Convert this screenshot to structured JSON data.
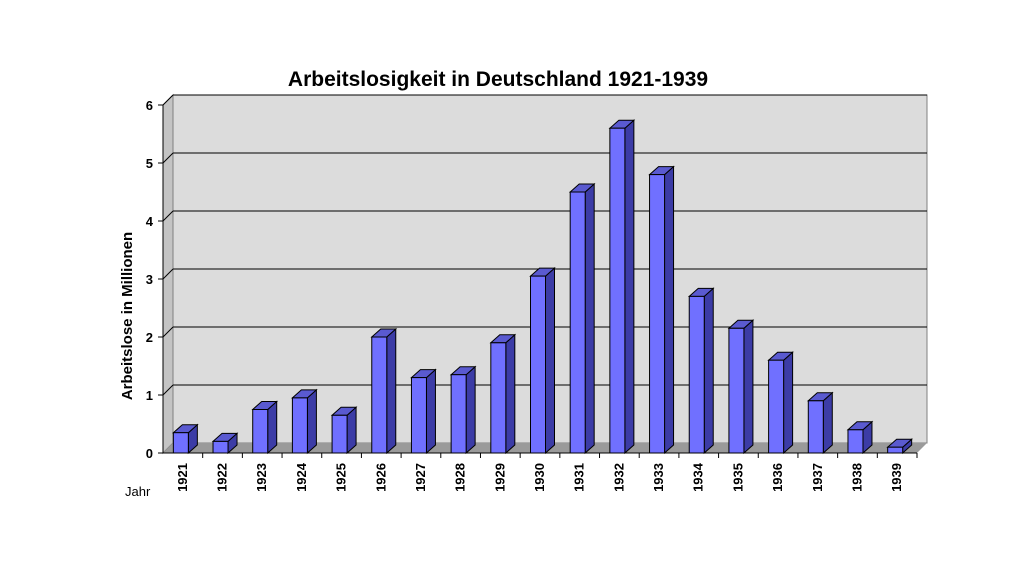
{
  "chart_data": {
    "type": "bar",
    "title": "Arbeitslosigkeit in Deutschland 1921-1939",
    "xlabel": "Jahr",
    "ylabel": "Arbeitslose in Millionen",
    "categories": [
      "1921",
      "1922",
      "1923",
      "1924",
      "1925",
      "1926",
      "1927",
      "1928",
      "1929",
      "1930",
      "1931",
      "1932",
      "1933",
      "1934",
      "1935",
      "1936",
      "1937",
      "1938",
      "1939"
    ],
    "values": [
      0.35,
      0.2,
      0.75,
      0.95,
      0.65,
      2.0,
      1.3,
      1.35,
      1.9,
      3.05,
      4.5,
      5.6,
      4.8,
      2.7,
      2.15,
      1.6,
      0.9,
      0.4,
      0.1
    ],
    "yticks": [
      "0",
      "1",
      "2",
      "3",
      "4",
      "5",
      "6"
    ],
    "ylim": [
      0,
      6
    ],
    "grid": true,
    "legend": "none",
    "colors": {
      "bar_front": "#7070ff",
      "bar_side": "#3c3ca6",
      "bar_top": "#5a5ad0",
      "wall": "#dcdcdc",
      "floor": "#9a9a9a",
      "gridline": "#000000"
    }
  }
}
